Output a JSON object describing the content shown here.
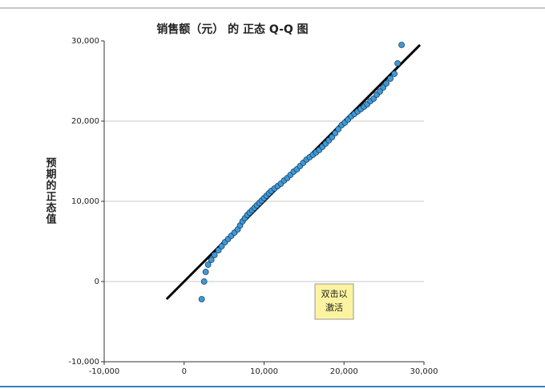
{
  "chart_data": {
    "type": "scatter",
    "title": "销售额（元） 的 正态 Q-Q 图",
    "y_label": "预期的正态值",
    "annotation": "双击以激活",
    "xlim": [
      -10000,
      30000
    ],
    "ylim": [
      -10000,
      30000
    ],
    "xticks": [
      {
        "value": -10000,
        "label": "-10,000"
      },
      0,
      {
        "value": 10000,
        "label": "10,000"
      },
      {
        "value": 20000,
        "label": "20,000"
      },
      {
        "value": 30000,
        "label": "30,000"
      }
    ],
    "yticks": [
      {
        "value": -10000,
        "label": "-10,000"
      },
      0,
      {
        "value": 10000,
        "label": "10,000"
      },
      {
        "value": 20000,
        "label": "20,000"
      },
      {
        "value": 30000,
        "label": "30,000"
      }
    ],
    "grid": true,
    "color": "#3d9ad8",
    "line_color": "#000000",
    "reference_line": {
      "x": [
        -2200,
        29500
      ],
      "y": [
        -2200,
        29500
      ]
    },
    "x": [
      2200,
      2500,
      2700,
      3000,
      3400,
      3800,
      4300,
      4700,
      5100,
      5500,
      5900,
      6300,
      6700,
      7000,
      7300,
      7600,
      7900,
      8200,
      8500,
      8800,
      9100,
      9400,
      9700,
      10000,
      10300,
      10600,
      10900,
      11300,
      11700,
      12100,
      12500,
      12900,
      13300,
      13700,
      14100,
      14500,
      14900,
      15300,
      15700,
      16100,
      16500,
      16900,
      17300,
      17700,
      18100,
      18500,
      18900,
      19300,
      19700,
      20100,
      20500,
      20900,
      21300,
      21700,
      22100,
      22500,
      22900,
      23300,
      23700,
      24100,
      24500,
      24900,
      25300,
      25800,
      26300,
      26700,
      27200
    ],
    "values": [
      -2200,
      0,
      1200,
      2100,
      2700,
      3300,
      3900,
      4400,
      4900,
      5300,
      5700,
      6100,
      6500,
      7000,
      7500,
      7900,
      8300,
      8600,
      8900,
      9200,
      9500,
      9800,
      10100,
      10400,
      10700,
      11000,
      11300,
      11600,
      11900,
      12200,
      12600,
      12900,
      13300,
      13700,
      14000,
      14400,
      14800,
      15200,
      15500,
      15800,
      16100,
      16400,
      16800,
      17200,
      17600,
      18000,
      18500,
      19000,
      19500,
      19800,
      20200,
      20600,
      20900,
      21200,
      21500,
      21800,
      22100,
      22500,
      22800,
      23300,
      23700,
      24200,
      24700,
      25300,
      25900,
      27200,
      29500
    ]
  }
}
